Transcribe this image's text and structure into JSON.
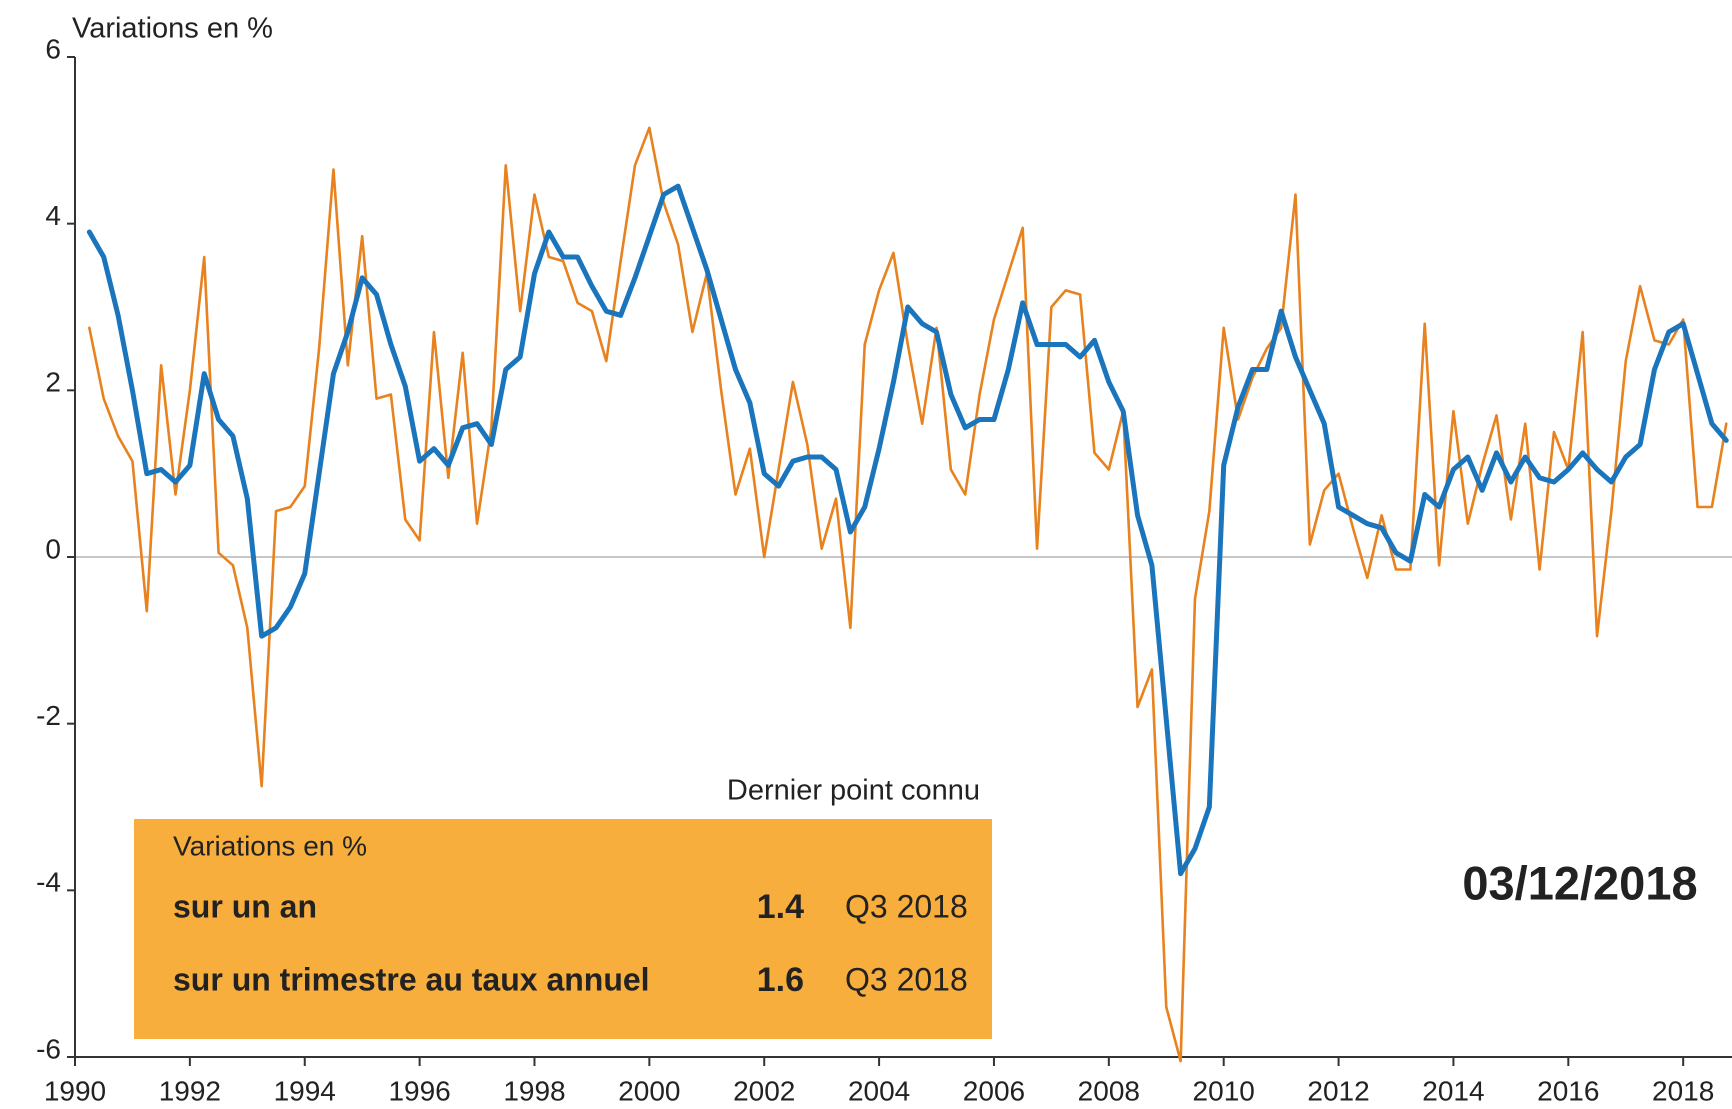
{
  "chart_data": {
    "type": "line",
    "y_label": "Variations en %",
    "x": [
      1990.25,
      1990.5,
      1990.75,
      1991,
      1991.25,
      1991.5,
      1991.75,
      1992,
      1992.25,
      1992.5,
      1992.75,
      1993,
      1993.25,
      1993.5,
      1993.75,
      1994,
      1994.25,
      1994.5,
      1994.75,
      1995,
      1995.25,
      1995.5,
      1995.75,
      1996,
      1996.25,
      1996.5,
      1996.75,
      1997,
      1997.25,
      1997.5,
      1997.75,
      1998,
      1998.25,
      1998.5,
      1998.75,
      1999,
      1999.25,
      1999.5,
      1999.75,
      2000,
      2000.25,
      2000.5,
      2000.75,
      2001,
      2001.25,
      2001.5,
      2001.75,
      2002,
      2002.25,
      2002.5,
      2002.75,
      2003,
      2003.25,
      2003.5,
      2003.75,
      2004,
      2004.25,
      2004.5,
      2004.75,
      2005,
      2005.25,
      2005.5,
      2005.75,
      2006,
      2006.25,
      2006.5,
      2006.75,
      2007,
      2007.25,
      2007.5,
      2007.75,
      2008,
      2008.25,
      2008.5,
      2008.75,
      2009,
      2009.25,
      2009.5,
      2009.75,
      2010,
      2010.25,
      2010.5,
      2010.75,
      2011,
      2011.25,
      2011.5,
      2011.75,
      2012,
      2012.25,
      2012.5,
      2012.75,
      2013,
      2013.25,
      2013.5,
      2013.75,
      2014,
      2014.25,
      2014.5,
      2014.75,
      2015,
      2015.25,
      2015.5,
      2015.75,
      2016,
      2016.25,
      2016.5,
      2016.75,
      2017,
      2017.25,
      2017.5,
      2017.75,
      2018,
      2018.25,
      2018.5,
      2018.75
    ],
    "series": [
      {
        "name": "sur un an",
        "color": "#1b75bc",
        "width": 5,
        "last_value": 1.4,
        "last_period": "Q3 2018",
        "values": [
          3.9,
          3.6,
          2.9,
          2.0,
          1.0,
          1.05,
          0.9,
          1.1,
          2.2,
          1.65,
          1.45,
          0.7,
          -0.95,
          -0.85,
          -0.6,
          -0.2,
          1.0,
          2.2,
          2.7,
          3.35,
          3.15,
          2.55,
          2.05,
          1.15,
          1.3,
          1.1,
          1.55,
          1.6,
          1.35,
          2.25,
          2.4,
          3.4,
          3.9,
          3.6,
          3.6,
          3.25,
          2.95,
          2.9,
          3.35,
          3.85,
          4.35,
          4.45,
          3.95,
          3.45,
          2.85,
          2.25,
          1.85,
          1.0,
          0.85,
          1.15,
          1.2,
          1.2,
          1.05,
          0.3,
          0.6,
          1.3,
          2.1,
          3.0,
          2.8,
          2.7,
          1.95,
          1.55,
          1.65,
          1.65,
          2.25,
          3.05,
          2.55,
          2.55,
          2.55,
          2.4,
          2.6,
          2.1,
          1.75,
          0.5,
          -0.1,
          -1.95,
          -3.8,
          -3.5,
          -3.0,
          1.1,
          1.8,
          2.25,
          2.25,
          2.95,
          2.4,
          2.0,
          1.6,
          0.6,
          0.5,
          0.4,
          0.35,
          0.05,
          -0.05,
          0.75,
          0.6,
          1.05,
          1.2,
          0.8,
          1.25,
          0.9,
          1.2,
          0.95,
          0.9,
          1.05,
          1.25,
          1.05,
          0.9,
          1.2,
          1.35,
          2.25,
          2.7,
          2.8,
          2.2,
          1.6,
          1.4
        ]
      },
      {
        "name": "sur un trimestre au taux annuel",
        "color": "#e8821e",
        "width": 2.6,
        "last_value": 1.6,
        "last_period": "Q3 2018",
        "values": [
          2.75,
          1.9,
          1.45,
          1.15,
          -0.65,
          2.3,
          0.75,
          2.0,
          3.6,
          0.05,
          -0.1,
          -0.85,
          -2.75,
          0.55,
          0.6,
          0.85,
          2.5,
          4.65,
          2.3,
          3.85,
          1.9,
          1.95,
          0.45,
          0.2,
          2.7,
          0.95,
          2.45,
          0.4,
          1.55,
          4.7,
          2.95,
          4.35,
          3.6,
          3.55,
          3.05,
          2.95,
          2.35,
          3.55,
          4.7,
          5.15,
          4.25,
          3.75,
          2.7,
          3.4,
          2.0,
          0.75,
          1.3,
          0.0,
          1.05,
          2.1,
          1.35,
          0.1,
          0.7,
          -0.85,
          2.55,
          3.2,
          3.65,
          2.55,
          1.6,
          2.75,
          1.05,
          0.75,
          1.95,
          2.85,
          3.4,
          3.95,
          0.1,
          3.0,
          3.2,
          3.15,
          1.25,
          1.05,
          1.75,
          -1.8,
          -1.35,
          -5.4,
          -6.05,
          -0.5,
          0.55,
          2.75,
          1.65,
          2.15,
          2.5,
          2.75,
          4.35,
          0.15,
          0.8,
          1.0,
          0.35,
          -0.25,
          0.5,
          -0.15,
          -0.15,
          2.8,
          -0.1,
          1.75,
          0.4,
          1.1,
          1.7,
          0.45,
          1.6,
          -0.15,
          1.5,
          1.05,
          2.7,
          -0.95,
          0.55,
          2.35,
          3.25,
          2.6,
          2.55,
          2.85,
          0.6,
          0.6,
          1.6
        ]
      }
    ],
    "xlim": [
      1990,
      2018.85
    ],
    "xticks": [
      1990,
      1992,
      1994,
      1996,
      1998,
      2000,
      2002,
      2004,
      2006,
      2008,
      2010,
      2012,
      2014,
      2016,
      2018
    ],
    "ylim": [
      -6,
      6
    ],
    "yticks": [
      -6,
      -4,
      -2,
      0,
      2,
      4,
      6
    ],
    "legend_header": "Dernier point connu",
    "legend_title": "Variations en %",
    "legend_fill": "#f8ae3c",
    "date_stamp": "03/12/2018",
    "date_color": "#1b75bc"
  }
}
